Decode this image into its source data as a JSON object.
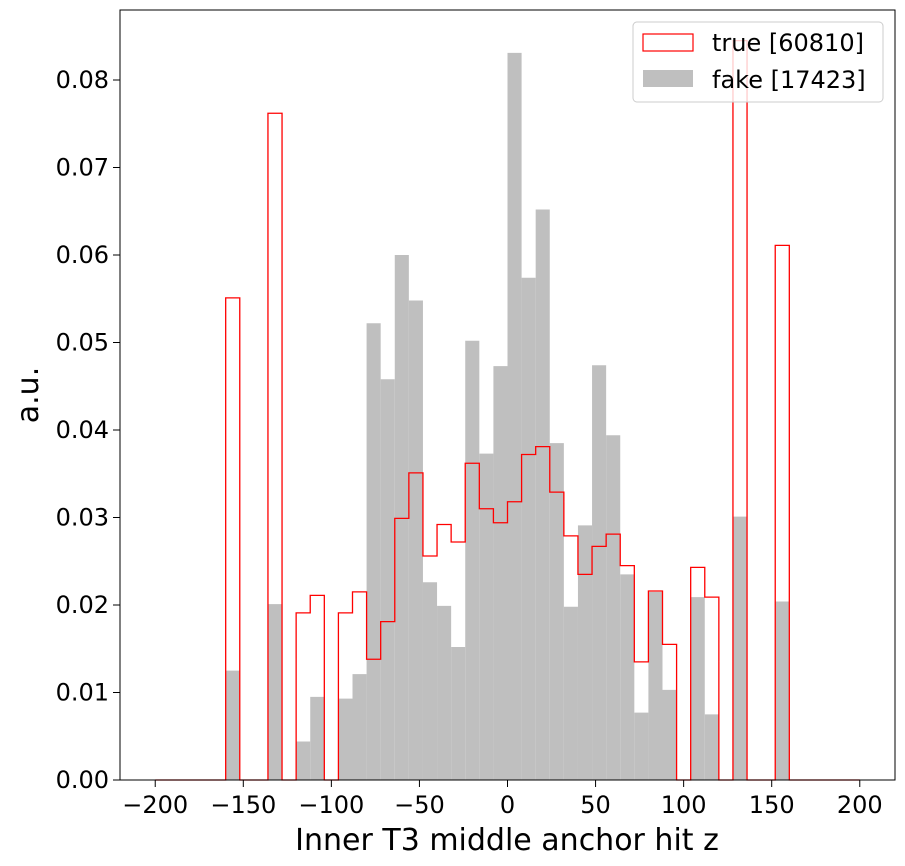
{
  "chart_data": {
    "type": "bar",
    "xlabel": "Inner T3 middle anchor hit z",
    "ylabel": "a.u.",
    "xlim": [
      -220,
      220
    ],
    "ylim": [
      0,
      0.088
    ],
    "xticks": [
      -200,
      -150,
      -100,
      -50,
      0,
      50,
      100,
      150,
      200
    ],
    "xtick_labels": [
      "−200",
      "−150",
      "−100",
      "−50",
      "0",
      "50",
      "100",
      "150",
      "200"
    ],
    "yticks": [
      0,
      0.01,
      0.02,
      0.03,
      0.04,
      0.05,
      0.06,
      0.07,
      0.08
    ],
    "ytick_labels": [
      "0.00",
      "0.01",
      "0.02",
      "0.03",
      "0.04",
      "0.05",
      "0.06",
      "0.07",
      "0.08"
    ],
    "bin_edges": [
      -200,
      -192,
      -184,
      -176,
      -168,
      -160,
      -152,
      -144,
      -136,
      -128,
      -120,
      -112,
      -104,
      -96,
      -88,
      -80,
      -72,
      -64,
      -56,
      -48,
      -40,
      -32,
      -24,
      -16,
      -8,
      0,
      8,
      16,
      24,
      32,
      40,
      48,
      56,
      64,
      72,
      80,
      88,
      96,
      104,
      112,
      120,
      128,
      136,
      144,
      152,
      160,
      168,
      176,
      184,
      192,
      200
    ],
    "legend_position": "top-right",
    "grid": false,
    "series": [
      {
        "name": "true [60810]",
        "style": "step",
        "color": "#ff0000",
        "values": [
          0,
          0,
          0,
          0,
          0,
          0.0551,
          0,
          0,
          0.0762,
          0,
          0.0191,
          0.0211,
          0,
          0.0191,
          0.0215,
          0.0138,
          0.0181,
          0.0299,
          0.0351,
          0.0256,
          0.0292,
          0.0272,
          0.0362,
          0.031,
          0.0294,
          0.0318,
          0.0372,
          0.0381,
          0.0329,
          0.0279,
          0.0235,
          0.0267,
          0.0281,
          0.0245,
          0.0135,
          0.0216,
          0.0155,
          0,
          0.0243,
          0.0209,
          0,
          0.0845,
          0,
          0,
          0.0611,
          0,
          0,
          0,
          0,
          0
        ]
      },
      {
        "name": "fake [17423]",
        "style": "filled",
        "color": "#bfbfbf",
        "values": [
          0,
          0,
          0,
          0,
          0,
          0.0125,
          0,
          0,
          0.0201,
          0,
          0.0044,
          0.0095,
          0,
          0.0093,
          0.0121,
          0.0522,
          0.0458,
          0.06,
          0.0548,
          0.0226,
          0.0199,
          0.0152,
          0.0502,
          0.0373,
          0.0473,
          0.0831,
          0.0574,
          0.0652,
          0.0385,
          0.0198,
          0.0291,
          0.0474,
          0.0394,
          0.0235,
          0.0077,
          0.0215,
          0.0103,
          0,
          0.0209,
          0.0075,
          0,
          0.0301,
          0,
          0,
          0.0204,
          0,
          0,
          0,
          0,
          0
        ]
      }
    ]
  }
}
